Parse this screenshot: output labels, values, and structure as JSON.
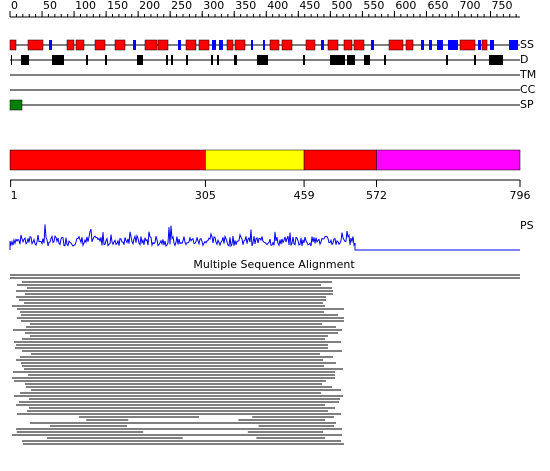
{
  "ruler": {
    "length": 796,
    "ticks": [
      0,
      50,
      100,
      150,
      200,
      250,
      300,
      350,
      400,
      450,
      500,
      550,
      600,
      650,
      700,
      750
    ]
  },
  "tracks": [
    "SS",
    "D",
    "TM",
    "CC",
    "SP"
  ],
  "domains": {
    "boundaries": [
      1,
      305,
      459,
      572,
      796
    ],
    "colors": [
      "#ff0000",
      "#ffff00",
      "#ff0000",
      "#ff00ff"
    ]
  },
  "profile_label": "PS",
  "msa_title": "Multiple Sequence Alignment"
}
